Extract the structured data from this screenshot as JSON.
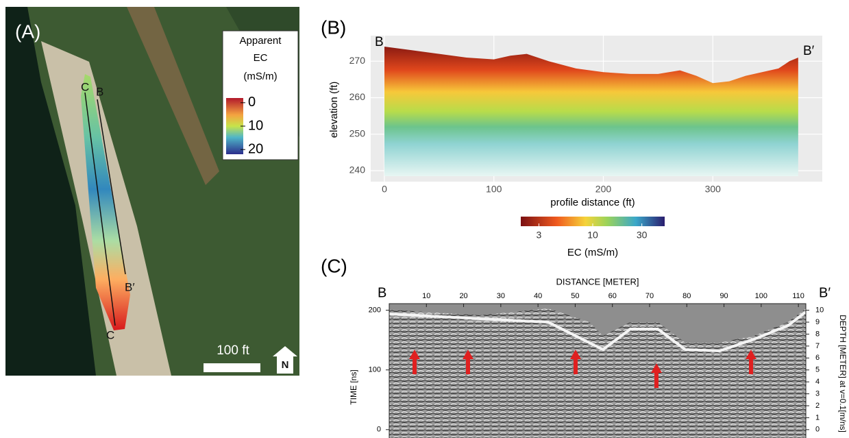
{
  "panel_a": {
    "label": "(A)",
    "legend_title": [
      "Apparent",
      "EC",
      "(mS/m)"
    ],
    "legend_ticks": [
      0,
      10,
      20
    ],
    "legend_lim": [
      -2,
      22
    ],
    "track_labels": [
      "C",
      "B",
      "B′",
      "C"
    ],
    "scale_bar": "100 ft",
    "north": "N"
  },
  "chart_data": [
    {
      "type": "area",
      "panel": "(B)",
      "start_label": "B",
      "end_label": "B′",
      "xlabel": "profile distance (ft)",
      "ylabel": "elevation (ft)",
      "x": [
        0,
        25,
        50,
        75,
        100,
        115,
        130,
        150,
        175,
        200,
        225,
        250,
        270,
        285,
        300,
        315,
        330,
        345,
        360,
        370,
        378
      ],
      "values": [
        274,
        273,
        272,
        271,
        270.5,
        271.5,
        272,
        270,
        268,
        267,
        266.5,
        266.5,
        267.5,
        266,
        264,
        264.5,
        266,
        267,
        268,
        270,
        271
      ],
      "xlim": [
        -12.5,
        400
      ],
      "xticks": [
        0,
        100,
        200,
        300
      ],
      "ylim": [
        237,
        277
      ],
      "yticks": [
        240,
        250,
        260,
        270
      ],
      "grid": true,
      "colorbar": {
        "label": "EC (mS/m)",
        "ticks": [
          3,
          10,
          30
        ],
        "lim": [
          2,
          50
        ],
        "log": true
      }
    },
    {
      "type": "radargram",
      "panel": "(C)",
      "start_label": "B",
      "end_label": "B′",
      "xlabel": "DISTANCE [METER]",
      "ylabel": "TIME [ns]",
      "y2label": "DEPTH [METER] at v=0.1[m/ns]",
      "xlim": [
        0,
        112
      ],
      "xticks": [
        10,
        20,
        30,
        40,
        50,
        60,
        70,
        80,
        90,
        100,
        110
      ],
      "ylim": [
        -14,
        211
      ],
      "yticks": [
        0,
        100,
        200
      ],
      "y2lim": [
        -0.7,
        10.55
      ],
      "y2ticks": [
        0,
        1,
        2,
        3,
        4,
        5,
        6,
        7,
        8,
        9,
        10
      ]
    }
  ]
}
